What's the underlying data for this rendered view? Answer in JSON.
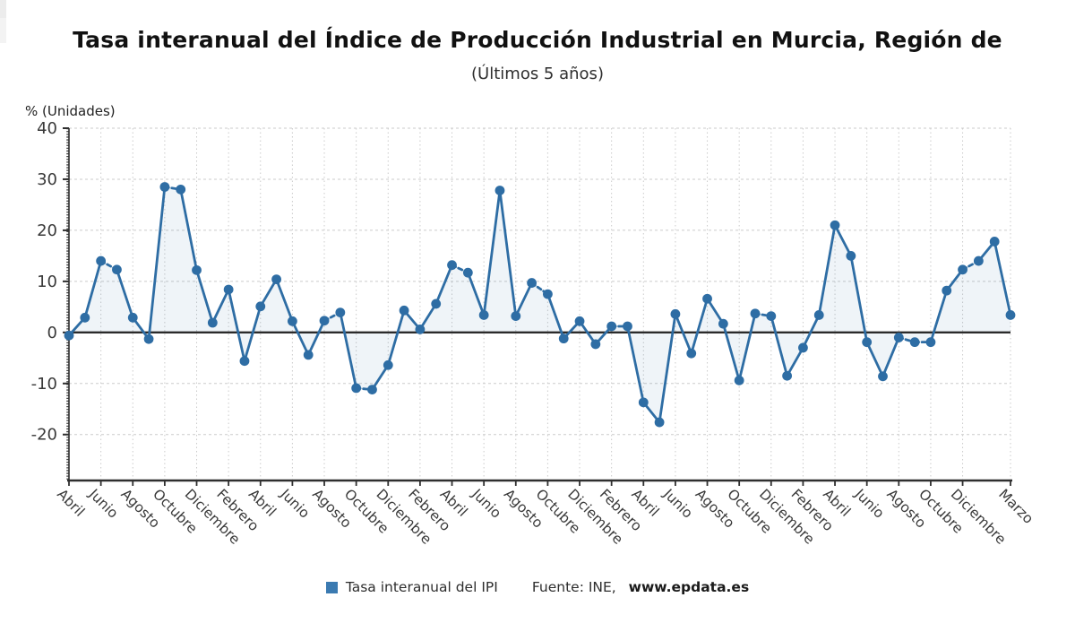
{
  "header": {
    "title": "Tasa interanual del Índice de Producción Industrial en Murcia, Región de",
    "subtitle": "(Últimos 5 años)"
  },
  "y_axis_title": "% (Unidades)",
  "legend": {
    "series_label": "Tasa interanual del IPI",
    "source_prefix": "Fuente: INE, ",
    "source_link": "www.epdata.es"
  },
  "colors": {
    "line": "#2e6da4",
    "marker": "#2e6da4",
    "legend_square": "#3b7ab1",
    "area": "rgba(46,109,164,0.08)",
    "zero_line": "#2b2b2b",
    "axis": "#2f2f2f",
    "grid": "#cbcbcb",
    "tick_text": "#3a3a3a"
  },
  "chart_data": {
    "type": "line",
    "title": "Tasa interanual del Índice de Producción Industrial en Murcia, Región de",
    "subtitle": "(Últimos 5 años)",
    "ylabel": "% (Unidades)",
    "legend_position": "bottom",
    "grid": true,
    "ylim": [
      -29,
      40
    ],
    "yticks": [
      40,
      30,
      20,
      10,
      0,
      -10,
      -20
    ],
    "x_month_count": 60,
    "x_tick_positions": [
      0,
      2,
      4,
      6,
      8,
      10,
      12,
      14,
      16,
      18,
      20,
      22,
      24,
      26,
      28,
      30,
      32,
      34,
      36,
      38,
      40,
      42,
      44,
      46,
      48,
      50,
      52,
      54,
      56,
      59
    ],
    "x_tick_labels": [
      "Abril",
      "Junio",
      "Agosto",
      "Octubre",
      "Diciembre",
      "Febrero",
      "Abril",
      "Junio",
      "Agosto",
      "Octubre",
      "Diciembre",
      "Febrero",
      "Abril",
      "Junio",
      "Agosto",
      "Octubre",
      "Diciembre",
      "Febrero",
      "Abril",
      "Junio",
      "Agosto",
      "Octubre",
      "Diciembre",
      "Febrero",
      "Abril",
      "Junio",
      "Agosto",
      "Octubre",
      "Diciembre",
      "Marzo"
    ],
    "series": [
      {
        "name": "Tasa interanual del IPI",
        "values": [
          -0.6,
          2.9,
          14.0,
          12.3,
          2.9,
          -1.3,
          28.5,
          28.0,
          12.2,
          1.9,
          8.4,
          -5.6,
          5.1,
          10.4,
          2.2,
          -4.4,
          2.3,
          3.9,
          -10.9,
          -11.2,
          -6.4,
          4.3,
          0.6,
          5.6,
          13.2,
          11.7,
          3.4,
          27.8,
          3.2,
          9.7,
          7.5,
          -1.2,
          2.2,
          -2.3,
          1.2,
          1.2,
          -13.7,
          -17.6,
          3.6,
          -4.1,
          6.6,
          1.7,
          -9.4,
          3.7,
          3.2,
          -8.5,
          -3.0,
          3.4,
          21.0,
          15.0,
          -1.9,
          -8.6,
          -1.0,
          -1.9,
          -1.9,
          8.2,
          12.3,
          14.0,
          17.8,
          3.4
        ]
      }
    ]
  }
}
